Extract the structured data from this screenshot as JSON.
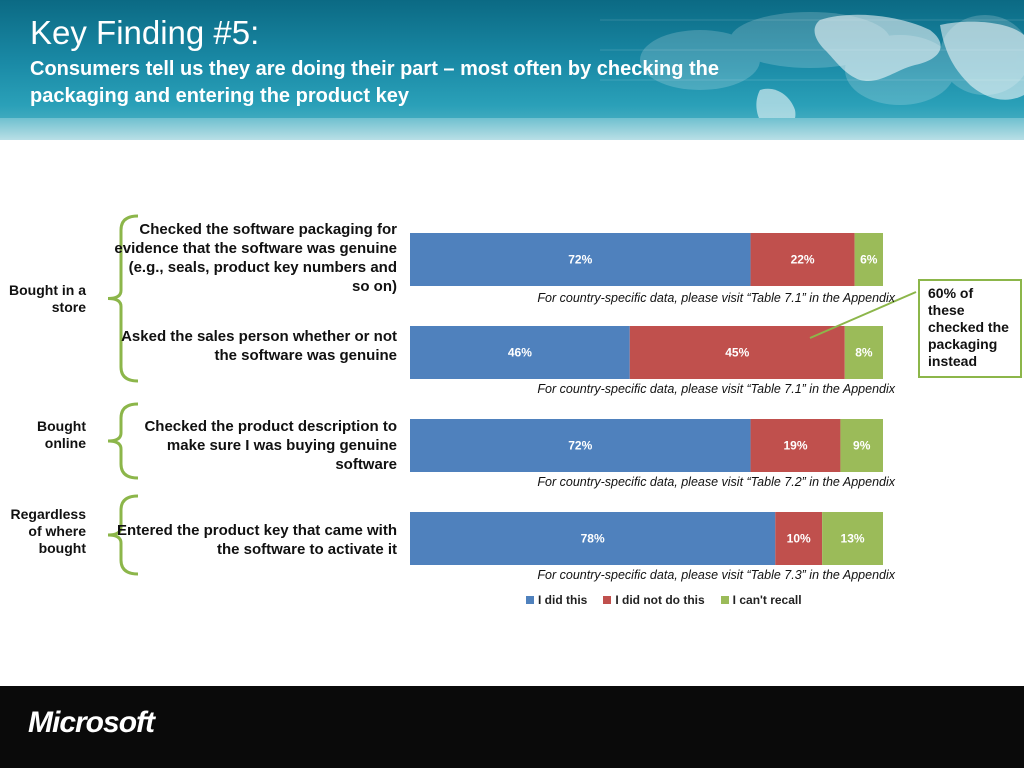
{
  "header": {
    "title": "Key Finding #5:",
    "subtitle": "Consumers tell us they are doing their part – most often by checking the packaging and entering the product key"
  },
  "groups": [
    {
      "label": "Bought in a store"
    },
    {
      "label": "Bought online"
    },
    {
      "label": "Regardless of where bought"
    }
  ],
  "callout": "60% of these checked the packaging instead",
  "footer": {
    "logo": "Microsoft"
  },
  "colors": {
    "did": "#4f81bd",
    "did_not": "#c0504d",
    "cant_recall": "#9bbb59",
    "bracket": "#8cb64a"
  },
  "chart_data": {
    "type": "bar",
    "orientation": "horizontal",
    "stacked": true,
    "categories": [
      "Checked the software packaging for evidence that the software was genuine (e.g., seals, product key numbers and so on)",
      "Asked the sales person whether or not the software was genuine",
      "Checked the product description to make sure I was buying genuine software",
      "Entered the product key that came with the software to activate it"
    ],
    "series": [
      {
        "name": "I did this",
        "values": [
          72,
          46,
          72,
          78
        ]
      },
      {
        "name": "I did not do this",
        "values": [
          22,
          45,
          19,
          10
        ]
      },
      {
        "name": "I can't recall",
        "values": [
          6,
          8,
          9,
          13
        ]
      }
    ],
    "data_labels": [
      [
        "72%",
        "22%",
        "6%"
      ],
      [
        "46%",
        "45%",
        "8%"
      ],
      [
        "72%",
        "19%",
        "9%"
      ],
      [
        "78%",
        "10%",
        "13%"
      ]
    ],
    "notes": [
      "For country-specific data, please visit “Table 7.1” in the Appendix",
      "For country-specific data, please visit “Table 7.1” in the Appendix",
      "For country-specific data, please visit “Table 7.2” in the Appendix",
      "For country-specific data, please visit “Table 7.3” in the Appendix"
    ],
    "legend": "bottom"
  }
}
